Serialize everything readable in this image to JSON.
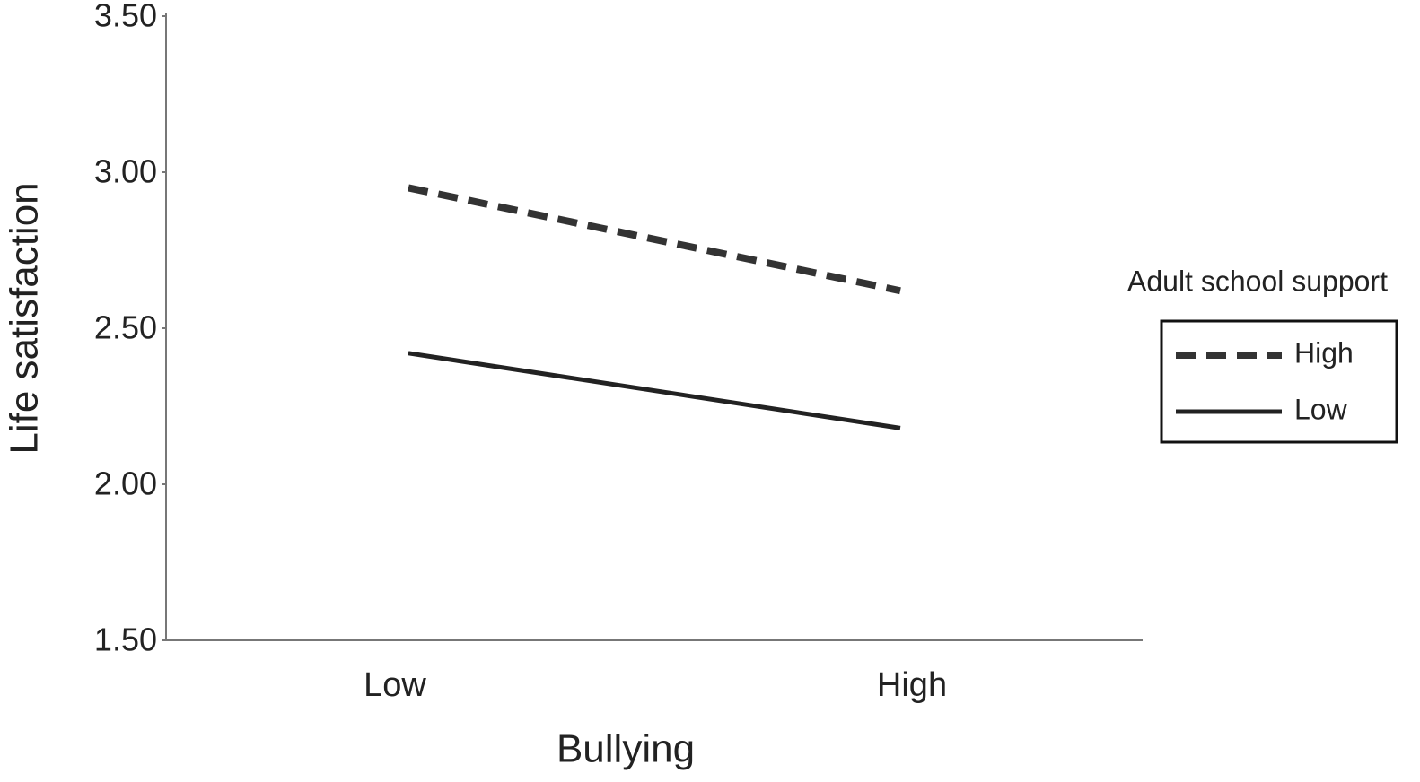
{
  "chart_data": {
    "type": "line",
    "x_label": "Bullying",
    "y_label": "Life satisfaction",
    "categories": [
      "Low",
      "High"
    ],
    "series": [
      {
        "name": "High",
        "color": "#333333",
        "dashed": true,
        "values": [
          2.95,
          2.62
        ]
      },
      {
        "name": "Low",
        "color": "#222222",
        "dashed": false,
        "values": [
          2.42,
          2.18
        ]
      }
    ],
    "ylim": [
      1.5,
      3.5
    ],
    "yticks": [
      {
        "value": 1.5,
        "label": "1.50"
      },
      {
        "value": 2,
        "label": "2.00"
      },
      {
        "value": 2.5,
        "label": "2.50"
      },
      {
        "value": 3,
        "label": "3.00"
      },
      {
        "value": 3.5,
        "label": "3.50"
      }
    ],
    "legend_title": "Adult school support",
    "legend_position": "right"
  }
}
